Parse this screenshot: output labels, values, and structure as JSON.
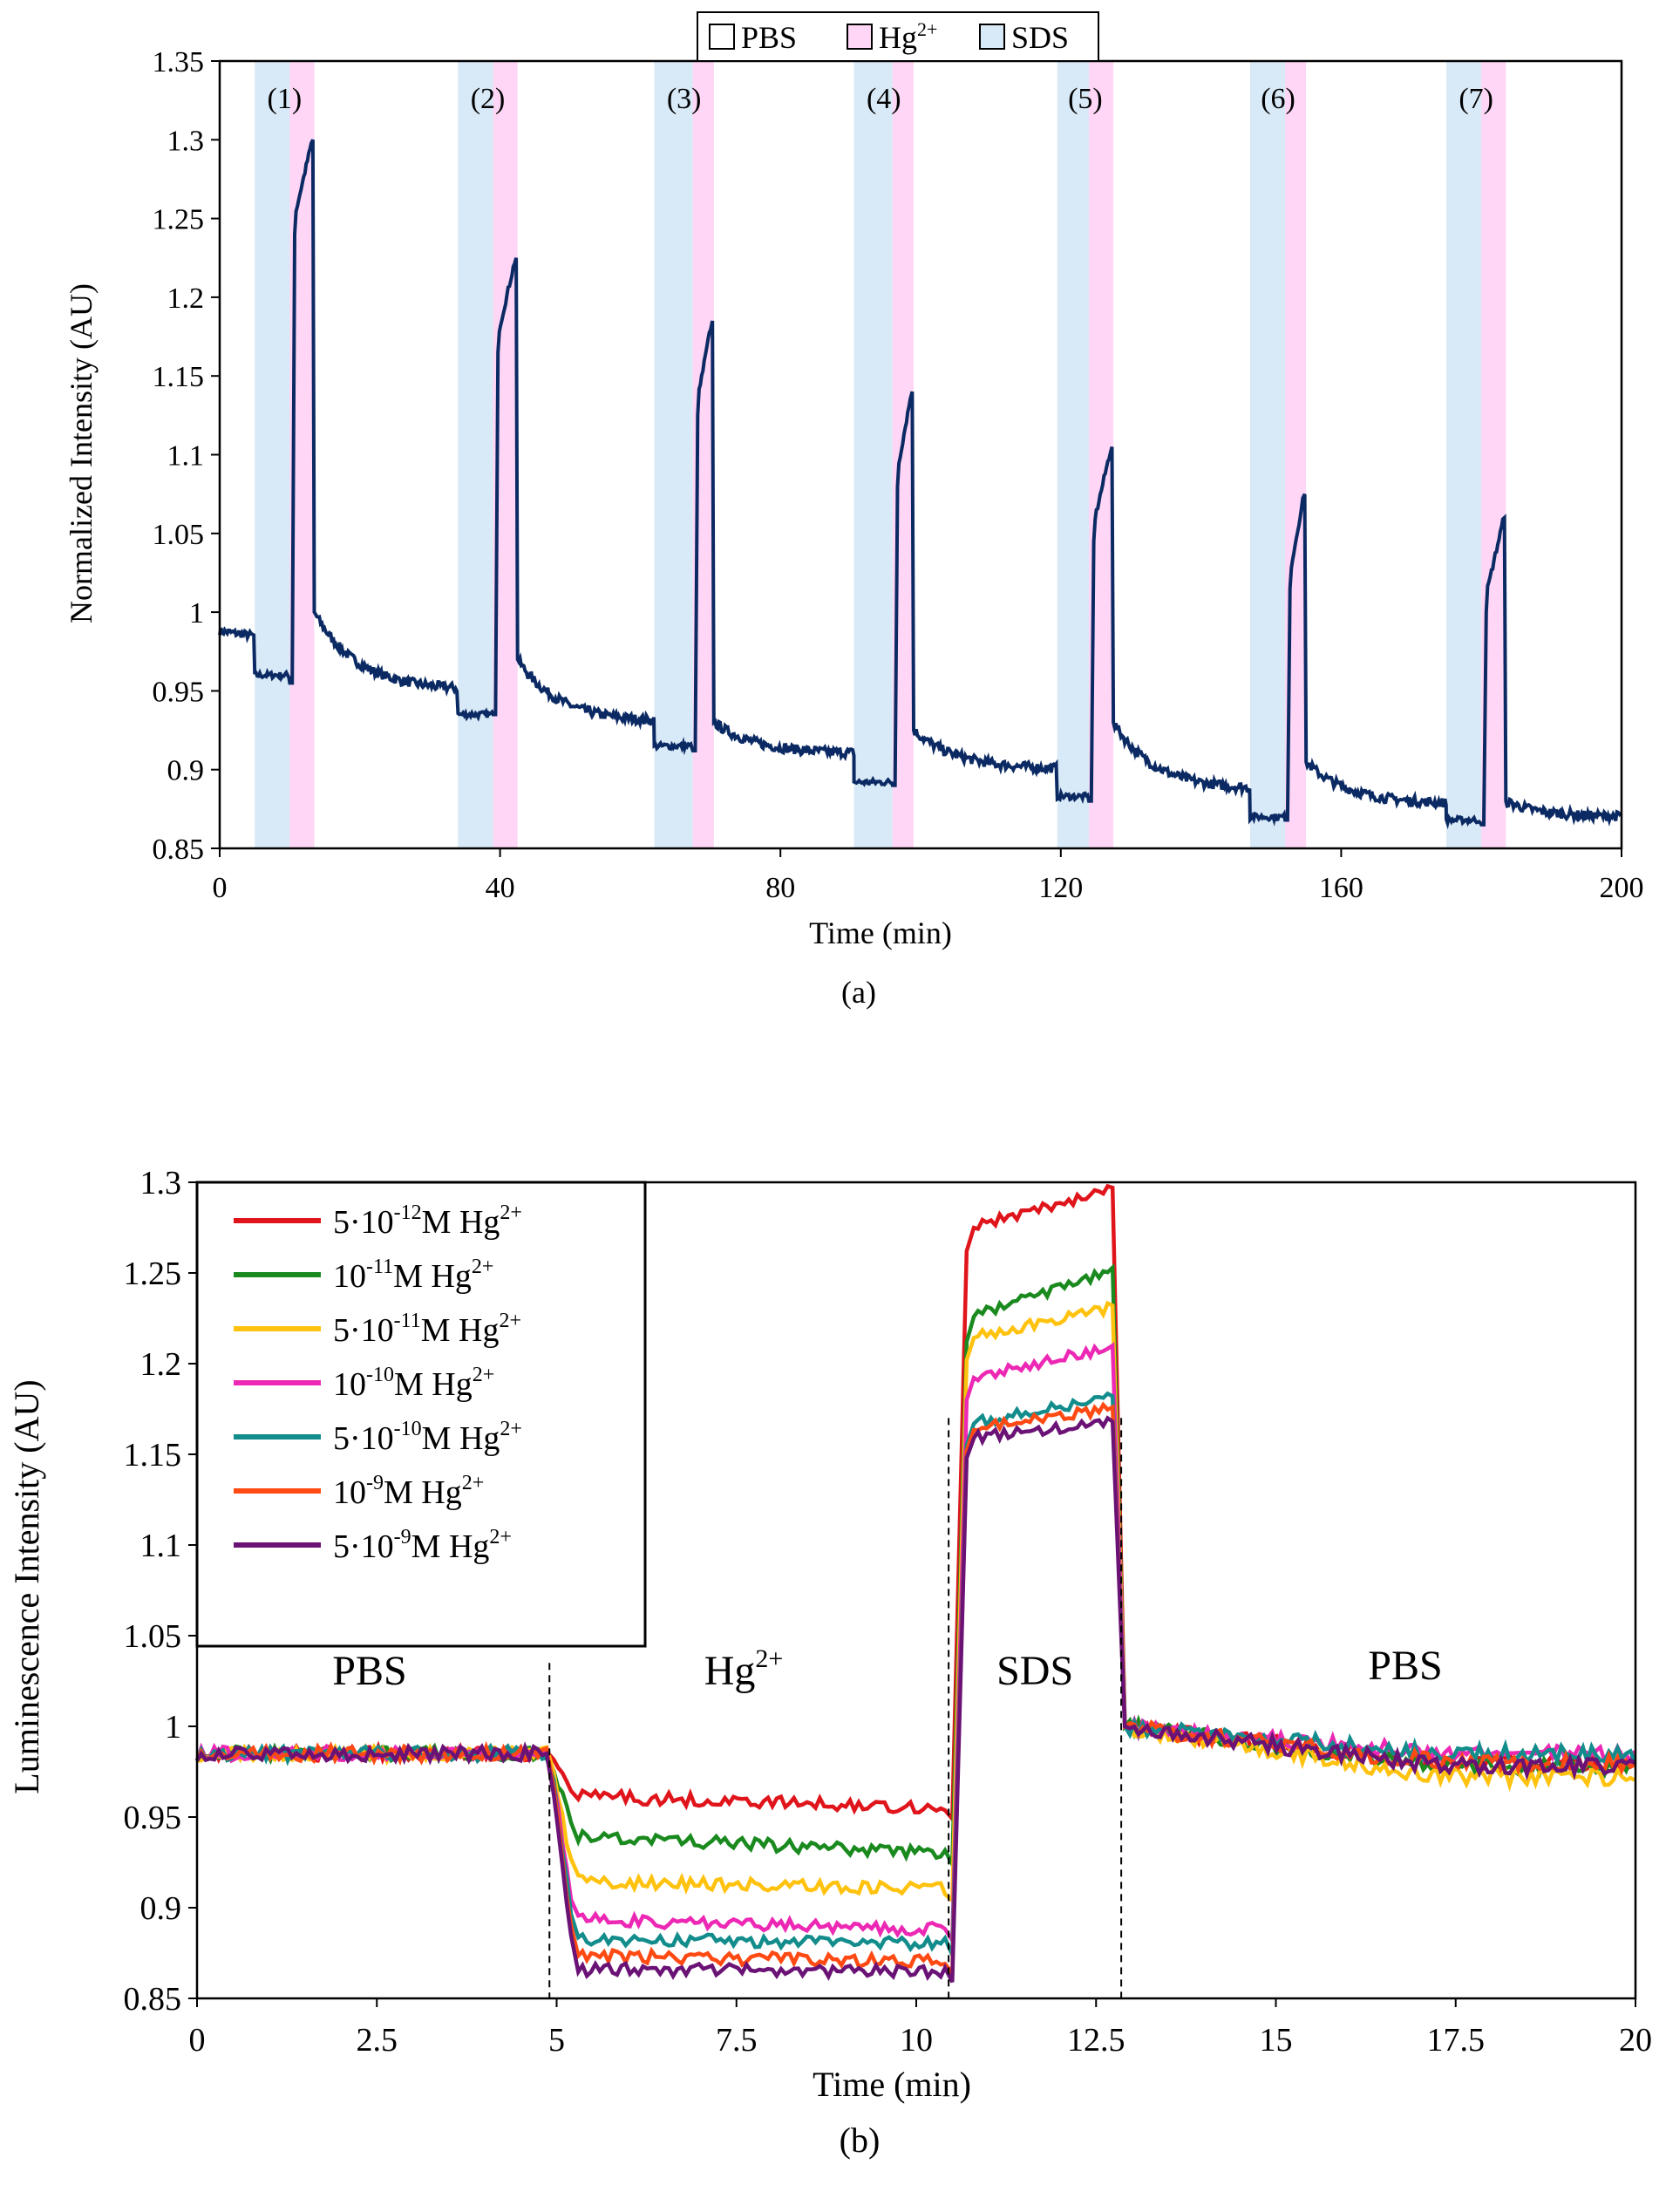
{
  "chart_data": [
    {
      "id": "a",
      "type": "line",
      "caption": "(a)",
      "xlabel": "Time (min)",
      "ylabel": "Normalized Intensity (AU)",
      "xlim": [
        0,
        200
      ],
      "ylim": [
        0.85,
        1.35
      ],
      "xticks": [
        "0",
        "40",
        "80",
        "120",
        "160",
        "200"
      ],
      "xtick_values": [
        0,
        40,
        80,
        120,
        160,
        200
      ],
      "yticks": [
        "0.85",
        "0.9",
        "0.95",
        "1",
        "1.05",
        "1.1",
        "1.15",
        "1.2",
        "1.25",
        "1.3",
        "1.35"
      ],
      "ytick_values": [
        0.85,
        0.9,
        0.95,
        1,
        1.05,
        1.1,
        1.15,
        1.2,
        1.25,
        1.3,
        1.35
      ],
      "legend": [
        {
          "label": "PBS",
          "sup": "",
          "color": "#ffffff"
        },
        {
          "label": "Hg",
          "sup": "2+",
          "color": "#ffd6f5"
        },
        {
          "label": "SDS",
          "sup": "",
          "color": "#d8e9f7"
        }
      ],
      "cycle_labels": [
        "(1)",
        "(2)",
        "(3)",
        "(4)",
        "(5)",
        "(6)",
        "(7)"
      ],
      "cycles": [
        {
          "sds": [
            5,
            10
          ],
          "hg": [
            10,
            13.5
          ],
          "pre": 0.985,
          "sdsv": 0.96,
          "hgmin": 0.955,
          "peak": 1.3,
          "post": 1.0,
          "end": 0.95
        },
        {
          "sds": [
            34,
            39
          ],
          "hg": [
            39,
            42.5
          ],
          "pre": 0.95,
          "sdsv": 0.935,
          "hgmin": 0.935,
          "peak": 1.225,
          "post": 0.97,
          "end": 0.93
        },
        {
          "sds": [
            62,
            67.5
          ],
          "hg": [
            67.5,
            70.5
          ],
          "pre": 0.93,
          "sdsv": 0.915,
          "hgmin": 0.912,
          "peak": 1.185,
          "post": 0.93,
          "end": 0.91
        },
        {
          "sds": [
            90.5,
            96
          ],
          "hg": [
            96,
            99
          ],
          "pre": 0.91,
          "sdsv": 0.892,
          "hgmin": 0.89,
          "peak": 1.14,
          "post": 0.925,
          "end": 0.9
        },
        {
          "sds": [
            119.5,
            124
          ],
          "hg": [
            124,
            127.5
          ],
          "pre": 0.9,
          "sdsv": 0.883,
          "hgmin": 0.88,
          "peak": 1.105,
          "post": 0.93,
          "end": 0.885
        },
        {
          "sds": [
            147,
            152
          ],
          "hg": [
            152,
            155
          ],
          "pre": 0.887,
          "sdsv": 0.87,
          "hgmin": 0.868,
          "peak": 1.075,
          "post": 0.905,
          "end": 0.878
        },
        {
          "sds": [
            175,
            180
          ],
          "hg": [
            180,
            183.5
          ],
          "pre": 0.878,
          "sdsv": 0.868,
          "hgmin": 0.865,
          "peak": 1.06,
          "post": 0.88,
          "end": 0.87
        }
      ],
      "series_color": "#0b2a63"
    },
    {
      "id": "b",
      "type": "line",
      "caption": "(b)",
      "xlabel": "Time (min)",
      "ylabel": "Luminescence Intensity (AU)",
      "xlim": [
        0,
        20
      ],
      "ylim": [
        0.85,
        1.3
      ],
      "xticks": [
        "0",
        "2.5",
        "5",
        "7.5",
        "10",
        "12.5",
        "15",
        "17.5",
        "20"
      ],
      "xtick_values": [
        0,
        2.5,
        5,
        7.5,
        10,
        12.5,
        15,
        17.5,
        20
      ],
      "yticks": [
        "0.85",
        "0.9",
        "0.95",
        "1",
        "1.05",
        "1.1",
        "1.15",
        "1.2",
        "1.25",
        "1.3"
      ],
      "ytick_values": [
        0.85,
        0.9,
        0.95,
        1,
        1.05,
        1.1,
        1.15,
        1.2,
        1.25,
        1.3
      ],
      "phase_boundaries": [
        4.9,
        10.45,
        12.85
      ],
      "phase_labels": [
        {
          "text": "PBS",
          "sup": "",
          "x": 2.4,
          "y": 1.023
        },
        {
          "text": "Hg",
          "sup": "2+",
          "x": 7.6,
          "y": 1.023
        },
        {
          "text": "SDS",
          "sup": "",
          "x": 11.65,
          "y": 1.023
        },
        {
          "text": "PBS",
          "sup": "",
          "x": 16.8,
          "y": 1.026
        }
      ],
      "series": [
        {
          "name": "5·10",
          "exp": "-12",
          "unit": "M Hg",
          "sup": "2+",
          "color": "#e0141b",
          "hg": 0.962,
          "hgend": 0.955,
          "sds": 1.272,
          "sdsend": 1.297,
          "pbs": 0.98
        },
        {
          "name": "10",
          "exp": "-11",
          "unit": "M Hg",
          "sup": "2+",
          "color": "#1a8a1f",
          "hg": 0.94,
          "hgend": 0.93,
          "sds": 1.222,
          "sdsend": 1.253,
          "pbs": 0.978
        },
        {
          "name": "5·10",
          "exp": "-11",
          "unit": "M Hg",
          "sup": "2+",
          "color": "#ffc20e",
          "hg": 0.915,
          "hgend": 0.91,
          "sds": 1.212,
          "sdsend": 1.232,
          "pbs": 0.972
        },
        {
          "name": "10",
          "exp": "-10",
          "unit": "M Hg",
          "sup": "2+",
          "color": "#ec28b4",
          "hg": 0.894,
          "hgend": 0.888,
          "sds": 1.19,
          "sdsend": 1.21,
          "pbs": 0.985
        },
        {
          "name": "5·10",
          "exp": "-10",
          "unit": "M Hg",
          "sup": "2+",
          "color": "#138c8c",
          "hg": 0.883,
          "hgend": 0.88,
          "sds": 1.165,
          "sdsend": 1.182,
          "pbs": 0.985
        },
        {
          "name": "10",
          "exp": "-9",
          "unit": "M Hg",
          "sup": "2+",
          "color": "#ff4a13",
          "hg": 0.874,
          "hgend": 0.87,
          "sds": 1.162,
          "sdsend": 1.176,
          "pbs": 0.98
        },
        {
          "name": "5·10",
          "exp": "-9",
          "unit": "M Hg",
          "sup": "2+",
          "color": "#6a1275",
          "hg": 0.866,
          "hgend": 0.865,
          "sds": 1.158,
          "sdsend": 1.168,
          "pbs": 0.978
        }
      ],
      "baseline": 0.985
    }
  ]
}
